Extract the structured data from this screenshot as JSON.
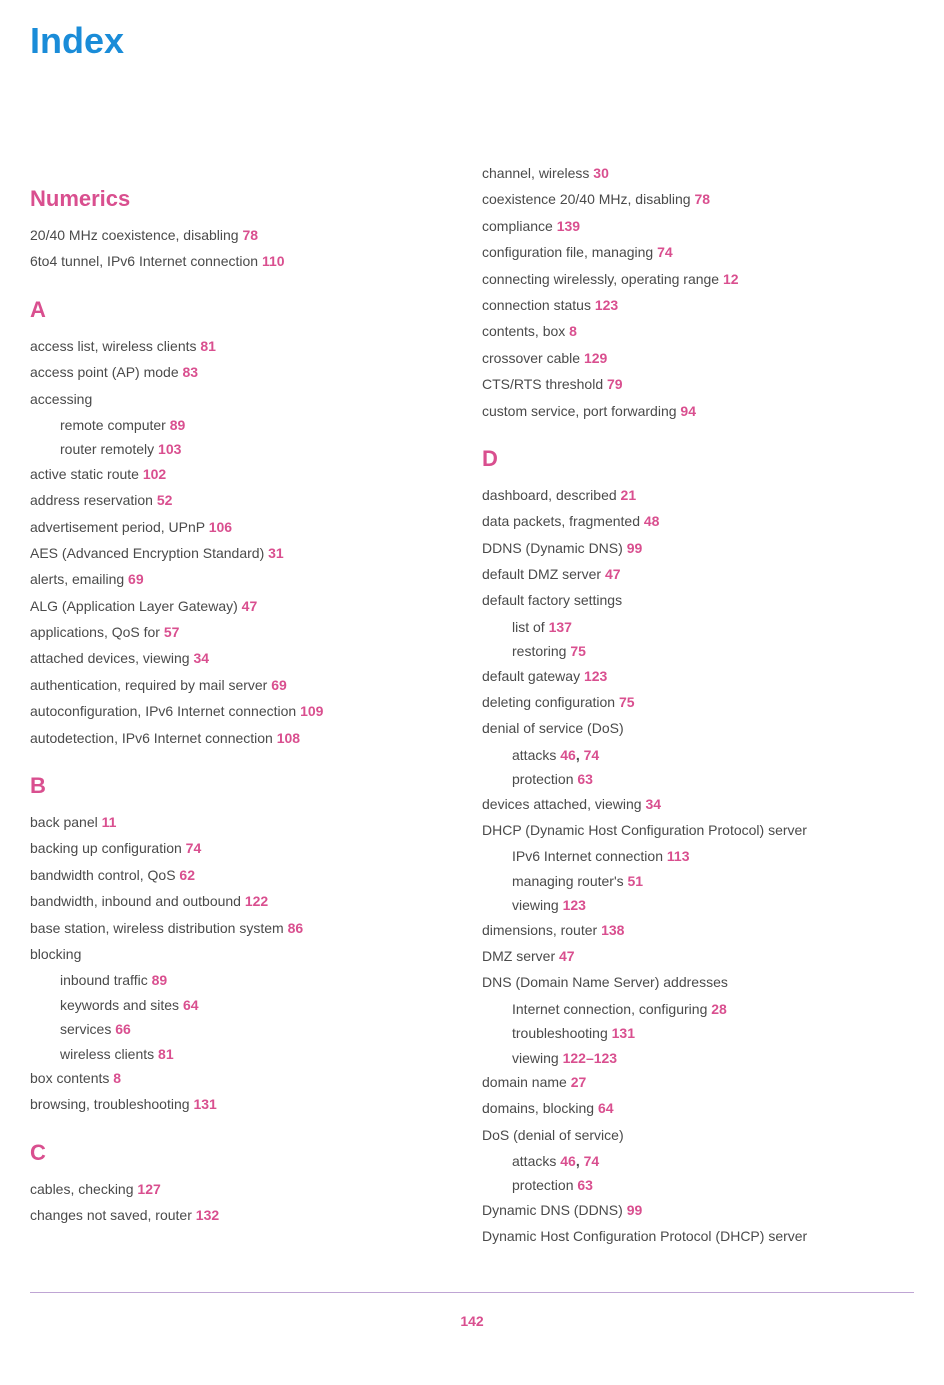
{
  "page_title": "Index",
  "page_number": "142",
  "colors": {
    "title": "#1a8cd8",
    "section_heading": "#d94f8f",
    "page_ref": "#d94f8f",
    "body_text": "#4a4a4a",
    "footer_line": "#bfa5d4",
    "background": "#ffffff"
  },
  "typography": {
    "title_fontsize": 36,
    "section_fontsize": 22,
    "body_fontsize": 14,
    "font_family": "Arial, Helvetica, sans-serif"
  },
  "left_col": {
    "numerics": {
      "heading": "Numerics",
      "entries": [
        {
          "text": "20/40 MHz coexistence, disabling",
          "pages": [
            "78"
          ]
        },
        {
          "text": "6to4 tunnel, IPv6 Internet connection",
          "pages": [
            "110"
          ]
        }
      ]
    },
    "a": {
      "heading": "A",
      "entries": [
        {
          "text": "access list, wireless clients",
          "pages": [
            "81"
          ]
        },
        {
          "text": "access point (AP) mode",
          "pages": [
            "83"
          ]
        },
        {
          "text": "accessing",
          "subs": [
            {
              "text": "remote computer",
              "pages": [
                "89"
              ]
            },
            {
              "text": "router remotely",
              "pages": [
                "103"
              ]
            }
          ]
        },
        {
          "text": "active static route",
          "pages": [
            "102"
          ]
        },
        {
          "text": "address reservation",
          "pages": [
            "52"
          ]
        },
        {
          "text": "advertisement period, UPnP",
          "pages": [
            "106"
          ]
        },
        {
          "text": "AES (Advanced Encryption Standard)",
          "pages": [
            "31"
          ]
        },
        {
          "text": "alerts, emailing",
          "pages": [
            "69"
          ]
        },
        {
          "text": "ALG (Application Layer Gateway)",
          "pages": [
            "47"
          ]
        },
        {
          "text": "applications, QoS for",
          "pages": [
            "57"
          ]
        },
        {
          "text": "attached devices, viewing",
          "pages": [
            "34"
          ]
        },
        {
          "text": "authentication, required by mail server",
          "pages": [
            "69"
          ]
        },
        {
          "text": "autoconfiguration, IPv6 Internet connection",
          "pages": [
            "109"
          ]
        },
        {
          "text": "autodetection, IPv6 Internet connection",
          "pages": [
            "108"
          ]
        }
      ]
    },
    "b": {
      "heading": "B",
      "entries": [
        {
          "text": "back panel",
          "pages": [
            "11"
          ]
        },
        {
          "text": "backing up configuration",
          "pages": [
            "74"
          ]
        },
        {
          "text": "bandwidth control, QoS",
          "pages": [
            "62"
          ]
        },
        {
          "text": "bandwidth, inbound and outbound",
          "pages": [
            "122"
          ]
        },
        {
          "text": "base station, wireless distribution system",
          "pages": [
            "86"
          ]
        },
        {
          "text": "blocking",
          "subs": [
            {
              "text": "inbound traffic",
              "pages": [
                "89"
              ]
            },
            {
              "text": "keywords and sites",
              "pages": [
                "64"
              ]
            },
            {
              "text": "services",
              "pages": [
                "66"
              ]
            },
            {
              "text": "wireless clients",
              "pages": [
                "81"
              ]
            }
          ]
        },
        {
          "text": "box contents",
          "pages": [
            "8"
          ]
        },
        {
          "text": "browsing, troubleshooting",
          "pages": [
            "131"
          ]
        }
      ]
    },
    "c": {
      "heading": "C",
      "entries": [
        {
          "text": "cables, checking",
          "pages": [
            "127"
          ]
        },
        {
          "text": "changes not saved, router",
          "pages": [
            "132"
          ]
        }
      ]
    }
  },
  "right_col": {
    "c_cont": {
      "entries": [
        {
          "text": "channel, wireless",
          "pages": [
            "30"
          ]
        },
        {
          "text": "coexistence 20/40 MHz, disabling",
          "pages": [
            "78"
          ]
        },
        {
          "text": "compliance",
          "pages": [
            "139"
          ]
        },
        {
          "text": "configuration file, managing",
          "pages": [
            "74"
          ]
        },
        {
          "text": "connecting wirelessly, operating range",
          "pages": [
            "12"
          ]
        },
        {
          "text": "connection status",
          "pages": [
            "123"
          ]
        },
        {
          "text": "contents, box",
          "pages": [
            "8"
          ]
        },
        {
          "text": "crossover cable",
          "pages": [
            "129"
          ]
        },
        {
          "text": "CTS/RTS threshold",
          "pages": [
            "79"
          ]
        },
        {
          "text": "custom service, port forwarding",
          "pages": [
            "94"
          ]
        }
      ]
    },
    "d": {
      "heading": "D",
      "entries": [
        {
          "text": "dashboard, described",
          "pages": [
            "21"
          ]
        },
        {
          "text": "data packets, fragmented",
          "pages": [
            "48"
          ]
        },
        {
          "text": "DDNS (Dynamic DNS)",
          "pages": [
            "99"
          ]
        },
        {
          "text": "default DMZ server",
          "pages": [
            "47"
          ]
        },
        {
          "text": "default factory settings",
          "subs": [
            {
              "text": "list of",
              "pages": [
                "137"
              ]
            },
            {
              "text": "restoring",
              "pages": [
                "75"
              ]
            }
          ]
        },
        {
          "text": "default gateway",
          "pages": [
            "123"
          ]
        },
        {
          "text": "deleting configuration",
          "pages": [
            "75"
          ]
        },
        {
          "text": "denial of service (DoS)",
          "subs": [
            {
              "text": "attacks",
              "pages": [
                "46",
                "74"
              ]
            },
            {
              "text": "protection",
              "pages": [
                "63"
              ]
            }
          ]
        },
        {
          "text": "devices attached, viewing",
          "pages": [
            "34"
          ]
        },
        {
          "text": "DHCP (Dynamic Host Configuration Protocol) server",
          "subs": [
            {
              "text": "IPv6 Internet connection",
              "pages": [
                "113"
              ]
            },
            {
              "text": "managing router's",
              "pages": [
                "51"
              ]
            },
            {
              "text": "viewing",
              "pages": [
                "123"
              ]
            }
          ]
        },
        {
          "text": "dimensions, router",
          "pages": [
            "138"
          ]
        },
        {
          "text": "DMZ server",
          "pages": [
            "47"
          ]
        },
        {
          "text": "DNS (Domain Name Server) addresses",
          "subs": [
            {
              "text": "Internet connection, configuring",
              "pages": [
                "28"
              ]
            },
            {
              "text": "troubleshooting",
              "pages": [
                "131"
              ]
            },
            {
              "text": "viewing",
              "pages": [
                "122–123"
              ],
              "range": true
            }
          ]
        },
        {
          "text": "domain name",
          "pages": [
            "27"
          ]
        },
        {
          "text": "domains, blocking",
          "pages": [
            "64"
          ]
        },
        {
          "text": "DoS (denial of service)",
          "subs": [
            {
              "text": "attacks",
              "pages": [
                "46",
                "74"
              ]
            },
            {
              "text": "protection",
              "pages": [
                "63"
              ]
            }
          ]
        },
        {
          "text": "Dynamic DNS (DDNS)",
          "pages": [
            "99"
          ]
        },
        {
          "text": "Dynamic Host Configuration Protocol (DHCP) server"
        }
      ]
    }
  }
}
